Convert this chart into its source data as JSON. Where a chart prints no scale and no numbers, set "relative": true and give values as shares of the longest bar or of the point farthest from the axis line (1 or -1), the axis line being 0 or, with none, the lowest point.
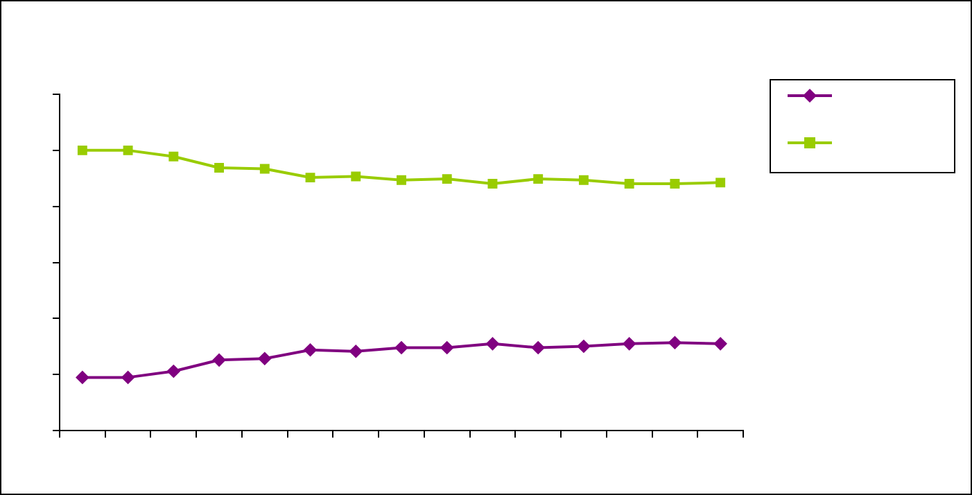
{
  "chart_data": {
    "type": "line",
    "relative": true,
    "categories": [
      null,
      null,
      null,
      null,
      null,
      null,
      null,
      null,
      null,
      null,
      null,
      null,
      null,
      null,
      null
    ],
    "grid": false,
    "series": [
      {
        "color": "#800080",
        "marker": "diamond",
        "values": [
          0.19,
          0.19,
          0.212,
          0.252,
          0.257,
          0.288,
          0.283,
          0.296,
          0.296,
          0.31,
          0.296,
          0.301,
          0.31,
          0.314,
          0.31
        ]
      },
      {
        "color": "#99cc00",
        "marker": "square",
        "values": [
          1,
          1,
          0.978,
          0.938,
          0.934,
          0.903,
          0.907,
          0.894,
          0.898,
          0.881,
          0.898,
          0.894,
          0.881,
          0.881,
          0.885
        ]
      }
    ]
  }
}
